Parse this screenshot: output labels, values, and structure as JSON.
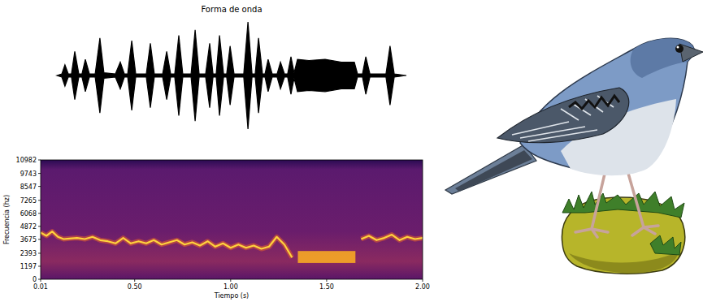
{
  "chart_data": [
    {
      "type": "waveform",
      "title": "Forma de onda",
      "tick_labels": false,
      "color": "#000000",
      "xlim": [
        0.01,
        2.0
      ],
      "ylim": [
        -1,
        1
      ],
      "x": [
        0.01,
        0.038,
        0.056,
        0.075,
        0.093,
        0.112,
        0.135,
        0.153,
        0.172,
        0.195,
        0.228,
        0.255,
        0.278,
        0.343,
        0.371,
        0.394,
        0.413,
        0.436,
        0.459,
        0.519,
        0.542,
        0.565,
        0.612,
        0.635,
        0.658,
        0.681,
        0.704,
        0.727,
        0.774,
        0.797,
        0.82,
        0.857,
        0.88,
        0.899,
        0.917,
        0.936,
        0.959,
        0.977,
        0.996,
        1.019,
        1.074,
        1.098,
        1.121,
        1.139,
        1.158,
        1.181,
        1.195,
        1.213,
        1.236,
        1.264,
        1.283,
        1.306,
        1.324,
        1.343,
        1.361,
        1.38,
        1.445,
        1.537,
        1.63,
        1.704,
        1.722,
        1.75,
        1.769,
        1.792,
        1.884,
        1.907,
        1.931,
        2.0
      ],
      "values": [
        0,
        0.03,
        0.2,
        0.03,
        0.03,
        0.45,
        0.03,
        0.03,
        0.3,
        0.03,
        0.03,
        0.7,
        0.05,
        0.03,
        0.25,
        0.03,
        0.03,
        0.65,
        0.03,
        0.03,
        0.6,
        0.03,
        0.03,
        0.45,
        0.03,
        0.03,
        0.75,
        0.03,
        0.03,
        0.85,
        0.03,
        0.03,
        0.6,
        0.03,
        0.03,
        0.75,
        0.03,
        0.03,
        0.55,
        0.03,
        0.03,
        1.0,
        0.03,
        0.03,
        0.7,
        0.03,
        0.03,
        0.3,
        0.03,
        0.03,
        0.25,
        0.03,
        0.03,
        0.35,
        0.05,
        0.3,
        0.28,
        0.3,
        0.25,
        0.25,
        0.03,
        0.03,
        0.35,
        0.03,
        0.03,
        0.55,
        0.03,
        0
      ]
    },
    {
      "type": "spectrogram",
      "x_label": "Tiempo (s)",
      "y_label": "Frecuencia (hz)",
      "xlim": [
        0.01,
        2.0
      ],
      "ylim": [
        0,
        10982
      ],
      "xticks": [
        0.01,
        {
          "value": 0.5,
          "label": "0.50"
        },
        {
          "value": 1,
          "label": "1.00"
        },
        {
          "value": 1.5,
          "label": "1.50"
        },
        {
          "value": 2,
          "label": "2.00"
        }
      ],
      "yticks": [
        0,
        1197,
        2393,
        3675,
        4872,
        6068,
        7265,
        8547,
        9743,
        10982
      ],
      "series": [
        {
          "color": "#ffd23c",
          "x": [
            0.01,
            0.04,
            0.07,
            0.1,
            0.13,
            0.16,
            0.2,
            0.24,
            0.28,
            0.32,
            0.36,
            0.4,
            0.44,
            0.48,
            0.52,
            0.56,
            0.6,
            0.64,
            0.68,
            0.72,
            0.76,
            0.8,
            0.84,
            0.88,
            0.92,
            0.96,
            1.0,
            1.04,
            1.08,
            1.12,
            1.16,
            1.2,
            1.24,
            1.28,
            1.32,
            1.35,
            1.68,
            1.72,
            1.76,
            1.8,
            1.84,
            1.88,
            1.92,
            1.96,
            2.0
          ],
          "values": [
            4300,
            4000,
            4400,
            3900,
            3700,
            3750,
            3800,
            3700,
            3900,
            3600,
            3500,
            3300,
            3800,
            3300,
            3500,
            3300,
            3600,
            3200,
            3400,
            3600,
            3200,
            3400,
            3100,
            3500,
            3000,
            3300,
            2900,
            3200,
            2900,
            3100,
            2800,
            3000,
            3900,
            3200,
            2000,
            null,
            3700,
            4000,
            3600,
            3800,
            4100,
            3600,
            3900,
            3700,
            3800
          ]
        }
      ],
      "bands": [
        {
          "x": [
            1.35,
            1.65
          ],
          "low": 1500,
          "high": 2600,
          "color": "#ffb020"
        }
      ]
    }
  ]
}
